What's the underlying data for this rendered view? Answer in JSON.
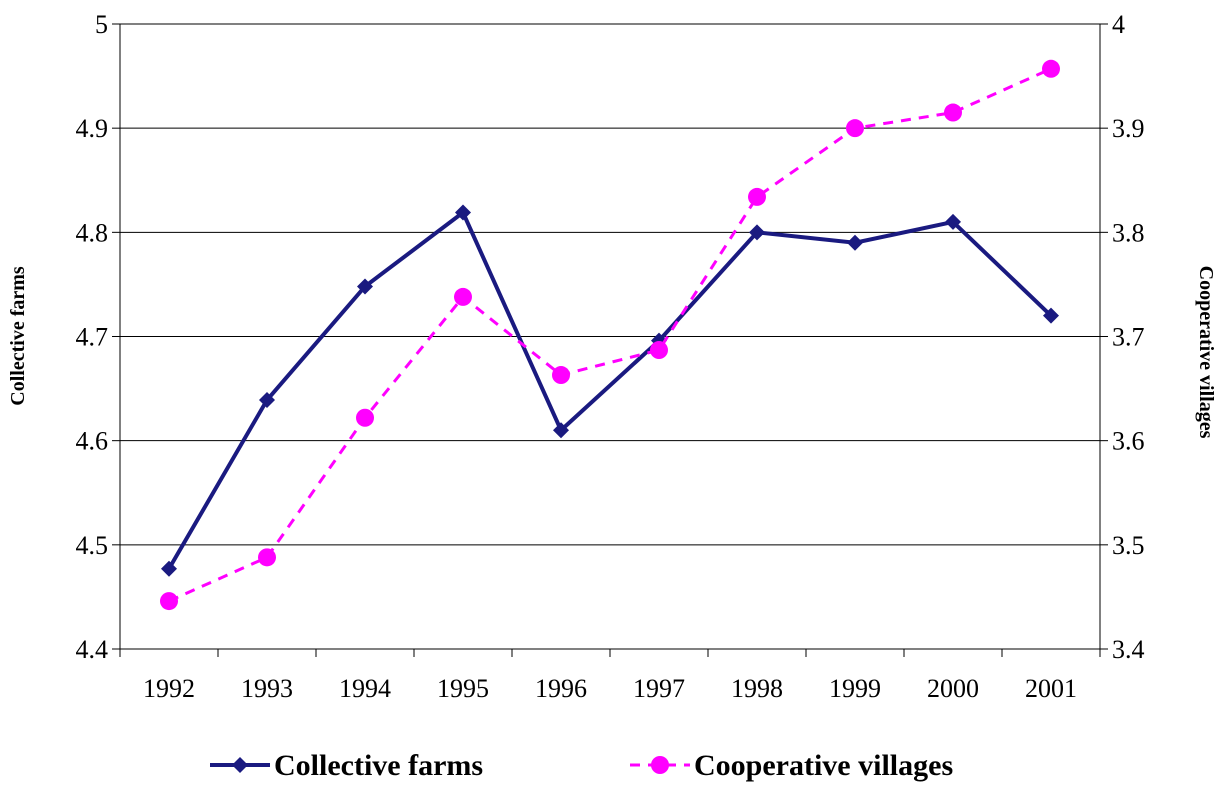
{
  "chart_data": {
    "type": "line",
    "categories": [
      "1992",
      "1993",
      "1994",
      "1995",
      "1996",
      "1997",
      "1998",
      "1999",
      "2000",
      "2001"
    ],
    "y_label": "Collective farms",
    "y2_label": "Cooperative villages",
    "ylim": [
      4.4,
      5
    ],
    "yticks": [
      4.4,
      4.5,
      4.6,
      4.7,
      4.8,
      4.9,
      5
    ],
    "y2lim": [
      3.4,
      4
    ],
    "y2ticks": [
      3.4,
      3.5,
      3.6,
      3.7,
      3.8,
      3.9,
      4
    ],
    "grid": true,
    "legend": "bottom",
    "series": [
      {
        "name": "Collective farms",
        "color": "#1a1a80",
        "marker": "diamond",
        "dash": false,
        "values": [
          4.477,
          4.639,
          4.748,
          4.819,
          4.61,
          4.696,
          4.8,
          4.79,
          4.81,
          4.72
        ]
      },
      {
        "name": "Cooperative villages",
        "color": "#ff00ff",
        "marker": "circle",
        "dash": true,
        "axis": "y2",
        "values": [
          3.446,
          3.488,
          3.622,
          3.738,
          3.663,
          3.687,
          3.834,
          3.9,
          3.915,
          3.957
        ]
      }
    ]
  }
}
